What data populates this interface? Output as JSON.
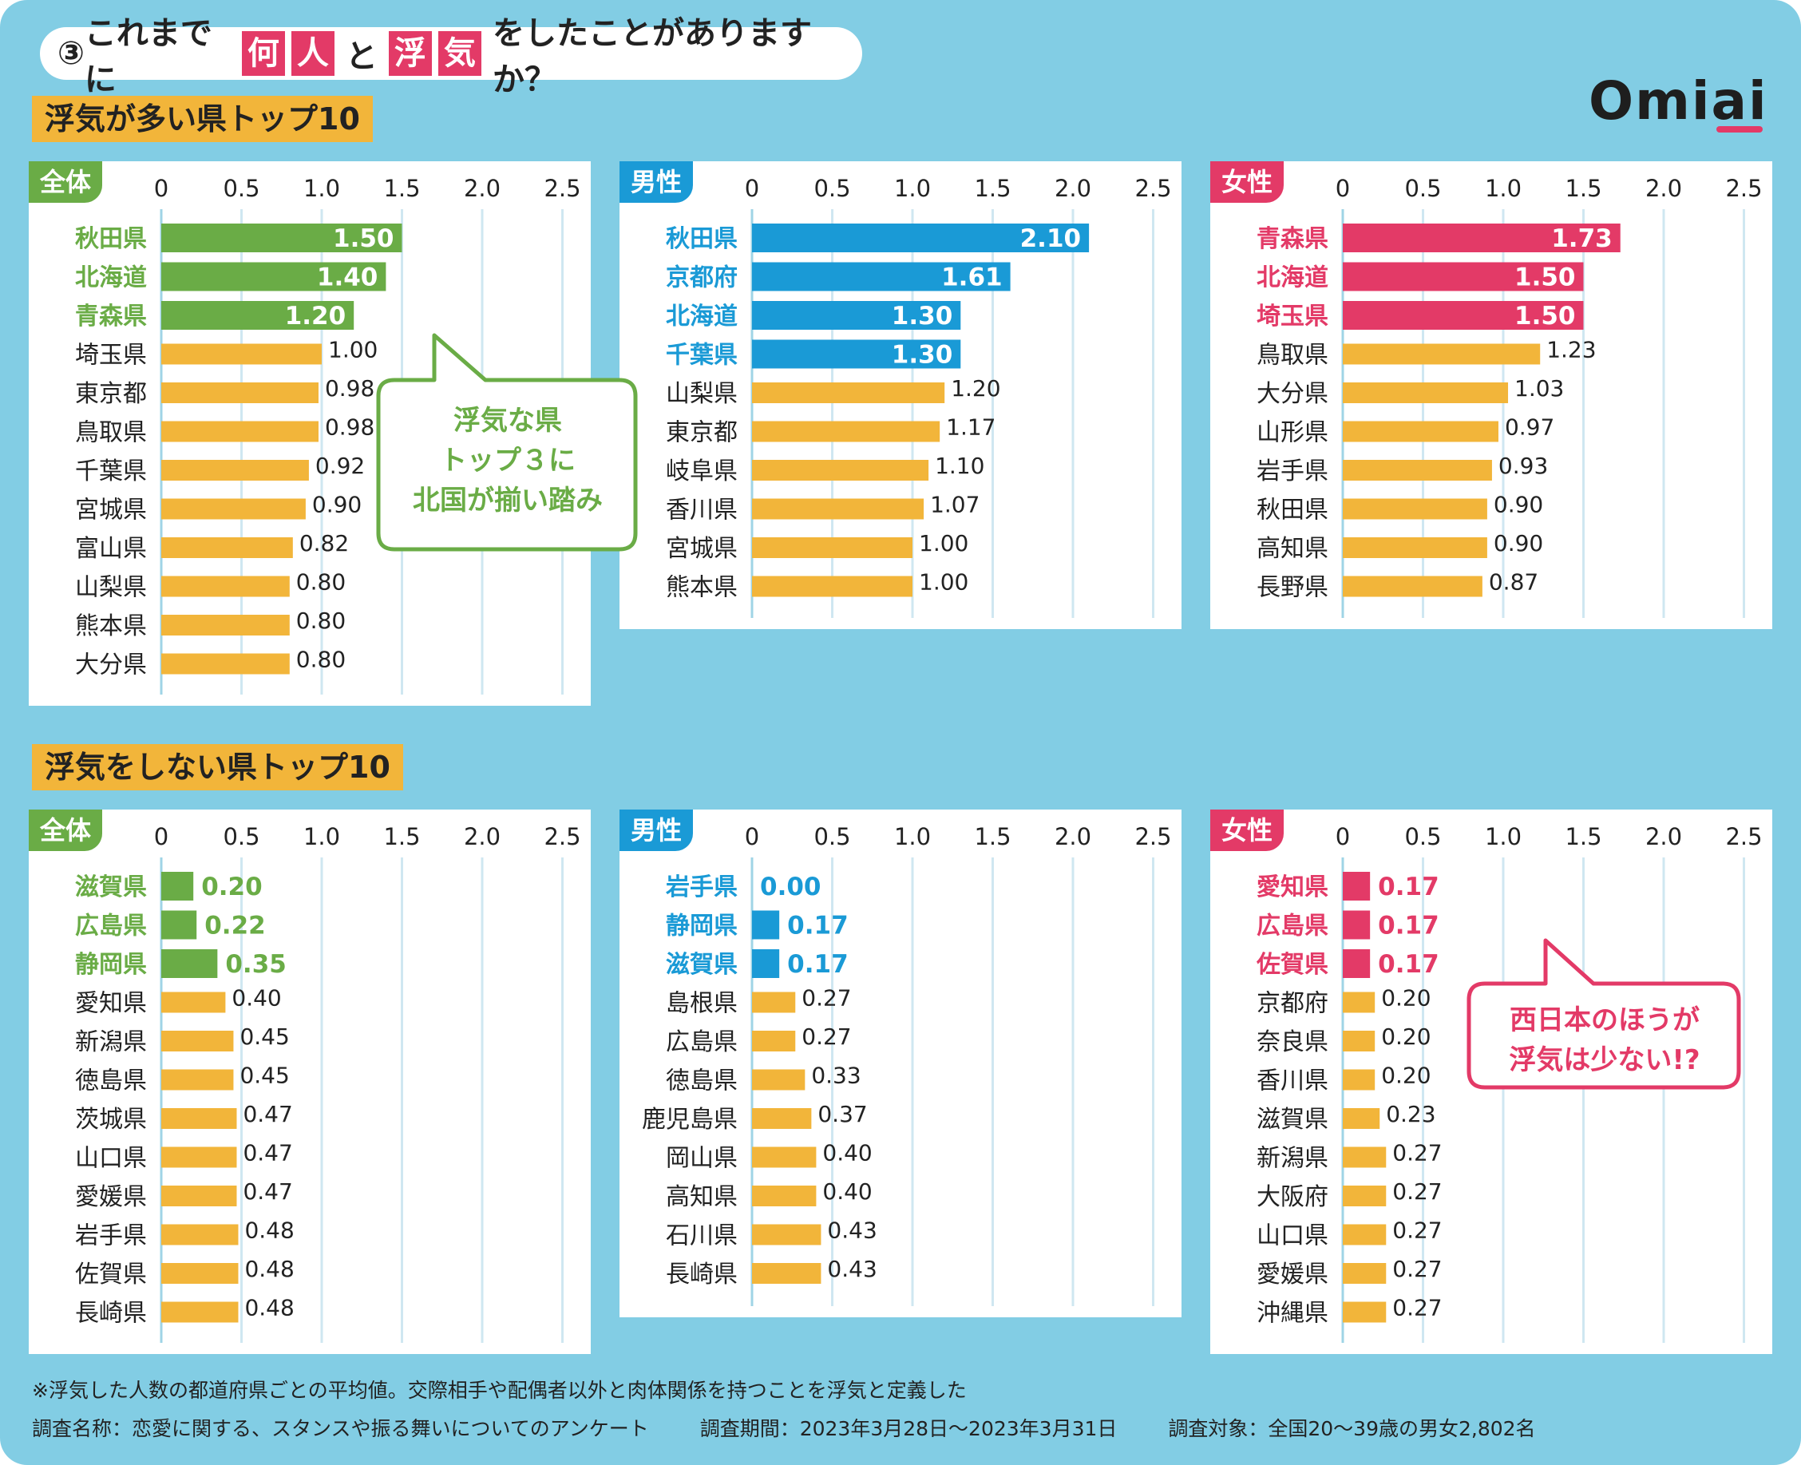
{
  "title": {
    "circled_number": "③",
    "part1": "これまでに",
    "hl1a": "何",
    "hl1b": "人",
    "mid": "と",
    "hl2a": "浮",
    "hl2b": "気",
    "part2": "をしたことがありますか？"
  },
  "logo": "Omiai",
  "colors": {
    "background": "#82cde4",
    "total": "#6aac46",
    "male": "#1a9ad6",
    "female": "#e33a67",
    "other_bar": "#f2b53a",
    "grid": "#cfe7f1"
  },
  "sections": {
    "top_label": "浮気が多い県トップ10",
    "bottom_label": "浮気をしない県トップ10"
  },
  "callouts": {
    "north": "浮気な県\nトップ３に\n北国が揃い踏み",
    "west": "西日本のほうが\n浮気は少ない!?"
  },
  "chart_data": [
    {
      "id": "top-total",
      "type": "bar",
      "orientation": "horizontal",
      "tab": "全体",
      "color_key": "total",
      "ticks": [
        "0",
        "0.5",
        "1.0",
        "1.5",
        "2.0",
        "2.5"
      ],
      "xlim": [
        0,
        2.5
      ],
      "categories": [
        "秋田県",
        "北海道",
        "青森県",
        "埼玉県",
        "東京都",
        "鳥取県",
        "千葉県",
        "宮城県",
        "富山県",
        "山梨県",
        "熊本県",
        "大分県"
      ],
      "values": [
        1.5,
        1.4,
        1.2,
        1.0,
        0.98,
        0.98,
        0.92,
        0.9,
        0.82,
        0.8,
        0.8,
        0.8
      ],
      "labels": [
        "1.50",
        "1.40",
        "1.20",
        "1.00",
        "0.98",
        "0.98",
        "0.92",
        "0.90",
        "0.82",
        "0.80",
        "0.80",
        "0.80"
      ],
      "highlight_count": 3
    },
    {
      "id": "top-male",
      "type": "bar",
      "orientation": "horizontal",
      "tab": "男性",
      "color_key": "male",
      "ticks": [
        "0",
        "0.5",
        "1.0",
        "1.5",
        "2.0",
        "2.5"
      ],
      "xlim": [
        0,
        2.5
      ],
      "categories": [
        "秋田県",
        "京都府",
        "北海道",
        "千葉県",
        "山梨県",
        "東京都",
        "岐阜県",
        "香川県",
        "宮城県",
        "熊本県"
      ],
      "values": [
        2.1,
        1.61,
        1.3,
        1.3,
        1.2,
        1.17,
        1.1,
        1.07,
        1.0,
        1.0
      ],
      "labels": [
        "2.10",
        "1.61",
        "1.30",
        "1.30",
        "1.20",
        "1.17",
        "1.10",
        "1.07",
        "1.00",
        "1.00"
      ],
      "highlight_count": 4
    },
    {
      "id": "top-female",
      "type": "bar",
      "orientation": "horizontal",
      "tab": "女性",
      "color_key": "female",
      "ticks": [
        "0",
        "0.5",
        "1.0",
        "1.5",
        "2.0",
        "2.5"
      ],
      "xlim": [
        0,
        2.5
      ],
      "categories": [
        "青森県",
        "北海道",
        "埼玉県",
        "鳥取県",
        "大分県",
        "山形県",
        "岩手県",
        "秋田県",
        "高知県",
        "長野県"
      ],
      "values": [
        1.73,
        1.5,
        1.5,
        1.23,
        1.03,
        0.97,
        0.93,
        0.9,
        0.9,
        0.87
      ],
      "labels": [
        "1.73",
        "1.50",
        "1.50",
        "1.23",
        "1.03",
        "0.97",
        "0.93",
        "0.90",
        "0.90",
        "0.87"
      ],
      "highlight_count": 3
    },
    {
      "id": "bottom-total",
      "type": "bar",
      "orientation": "horizontal",
      "tab": "全体",
      "color_key": "total",
      "ticks": [
        "0",
        "0.5",
        "1.0",
        "1.5",
        "2.0",
        "2.5"
      ],
      "xlim": [
        0,
        2.5
      ],
      "categories": [
        "滋賀県",
        "広島県",
        "静岡県",
        "愛知県",
        "新潟県",
        "徳島県",
        "茨城県",
        "山口県",
        "愛媛県",
        "岩手県",
        "佐賀県",
        "長崎県"
      ],
      "values": [
        0.2,
        0.22,
        0.35,
        0.4,
        0.45,
        0.45,
        0.47,
        0.47,
        0.47,
        0.48,
        0.48,
        0.48
      ],
      "labels": [
        "0.20",
        "0.22",
        "0.35",
        "0.40",
        "0.45",
        "0.45",
        "0.47",
        "0.47",
        "0.47",
        "0.48",
        "0.48",
        "0.48"
      ],
      "highlight_count": 3
    },
    {
      "id": "bottom-male",
      "type": "bar",
      "orientation": "horizontal",
      "tab": "男性",
      "color_key": "male",
      "ticks": [
        "0",
        "0.5",
        "1.0",
        "1.5",
        "2.0",
        "2.5"
      ],
      "xlim": [
        0,
        2.5
      ],
      "categories": [
        "岩手県",
        "静岡県",
        "滋賀県",
        "島根県",
        "広島県",
        "徳島県",
        "鹿児島県",
        "岡山県",
        "高知県",
        "石川県",
        "長崎県"
      ],
      "values": [
        0.0,
        0.17,
        0.17,
        0.27,
        0.27,
        0.33,
        0.37,
        0.4,
        0.4,
        0.43,
        0.43
      ],
      "labels": [
        "0.00",
        "0.17",
        "0.17",
        "0.27",
        "0.27",
        "0.33",
        "0.37",
        "0.40",
        "0.40",
        "0.43",
        "0.43"
      ],
      "highlight_count": 3
    },
    {
      "id": "bottom-female",
      "type": "bar",
      "orientation": "horizontal",
      "tab": "女性",
      "color_key": "female",
      "ticks": [
        "0",
        "0.5",
        "1.0",
        "1.5",
        "2.0",
        "2.5"
      ],
      "xlim": [
        0,
        2.5
      ],
      "categories": [
        "愛知県",
        "広島県",
        "佐賀県",
        "京都府",
        "奈良県",
        "香川県",
        "滋賀県",
        "新潟県",
        "大阪府",
        "山口県",
        "愛媛県",
        "沖縄県"
      ],
      "values": [
        0.17,
        0.17,
        0.17,
        0.2,
        0.2,
        0.2,
        0.23,
        0.27,
        0.27,
        0.27,
        0.27,
        0.27
      ],
      "labels": [
        "0.17",
        "0.17",
        "0.17",
        "0.20",
        "0.20",
        "0.20",
        "0.23",
        "0.27",
        "0.27",
        "0.27",
        "0.27",
        "0.27"
      ],
      "highlight_count": 3
    }
  ],
  "footer": {
    "note": "※浮気した人数の都道府県ごとの平均値。交際相手や配偶者以外と肉体関係を持つことを浮気と定義した",
    "survey_name": "調査名称：恋愛に関する、スタンスや振る舞いについてのアンケート",
    "survey_period": "調査期間：2023年3月28日～2023年3月31日",
    "survey_target": "調査対象：全国20～39歳の男女2,802名"
  }
}
